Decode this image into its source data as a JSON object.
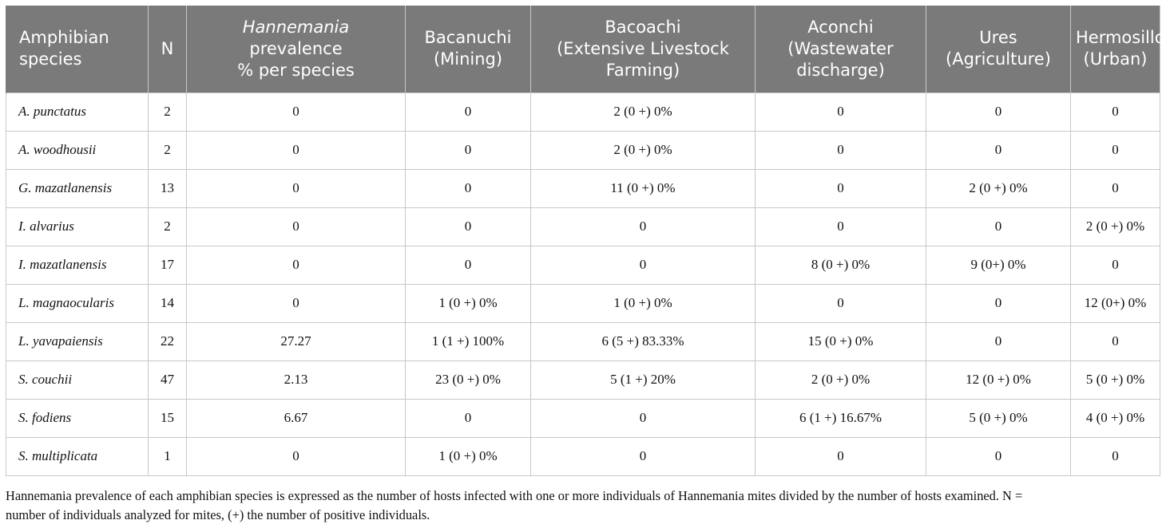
{
  "table": {
    "headers": {
      "species": [
        "Amphibian",
        "species"
      ],
      "n": "N",
      "prevalence_italic": "Hannemania",
      "prevalence_rest": [
        "prevalence",
        "% per species"
      ],
      "bacanuchi": [
        "Bacanuchi",
        "(Mining)"
      ],
      "bacoachi": [
        "Bacoachi",
        "(Extensive Livestock",
        "Farming)"
      ],
      "aconchi": [
        "Aconchi",
        "(Wastewater",
        "discharge)"
      ],
      "ures": [
        "Ures",
        "(Agriculture)"
      ],
      "hermosillo": [
        "Hermosillo",
        "(Urban)"
      ]
    },
    "rows": [
      [
        "A. punctatus",
        "2",
        "0",
        "0",
        "2 (0 +) 0%",
        "0",
        "0",
        "0"
      ],
      [
        "A. woodhousii",
        "2",
        "0",
        "0",
        "2 (0 +) 0%",
        "0",
        "0",
        "0"
      ],
      [
        "G. mazatlanensis",
        "13",
        "0",
        "0",
        "11 (0 +) 0%",
        "0",
        "2 (0 +) 0%",
        "0"
      ],
      [
        "I. alvarius",
        "2",
        "0",
        "0",
        "0",
        "0",
        "0",
        "2 (0 +) 0%"
      ],
      [
        "I. mazatlanensis",
        "17",
        "0",
        "0",
        "0",
        "8 (0 +) 0%",
        "9 (0+) 0%",
        "0"
      ],
      [
        "L. magnaocularis",
        "14",
        "0",
        "1 (0 +) 0%",
        "1 (0 +) 0%",
        "0",
        "0",
        "12 (0+) 0%"
      ],
      [
        "L. yavapaiensis",
        "22",
        "27.27",
        "1 (1 +) 100%",
        "6 (5 +) 83.33%",
        "15 (0 +) 0%",
        "0",
        "0"
      ],
      [
        "S. couchii",
        "47",
        "2.13",
        "23 (0 +) 0%",
        "5 (1 +) 20%",
        "2 (0 +) 0%",
        "12 (0 +) 0%",
        "5 (0 +) 0%"
      ],
      [
        "S. fodiens",
        "15",
        "6.67",
        "0",
        "0",
        "6 (1 +) 16.67%",
        "5 (0 +) 0%",
        "4 (0 +) 0%"
      ],
      [
        "S. multiplicata",
        "1",
        "0",
        "1 (0 +) 0%",
        "0",
        "0",
        "0",
        "0"
      ]
    ]
  },
  "footnote": {
    "line1": "Hannemania prevalence of each amphibian species is expressed as the number of hosts infected with one or more individuals of Hannemania mites divided by the number of hosts examined. N =",
    "line2": "number of individuals analyzed for mites, (+) the number of positive individuals."
  },
  "colors": {
    "header_bg": "#7a7a7a",
    "header_text": "#ffffff",
    "grid": "#c8c8c8"
  }
}
